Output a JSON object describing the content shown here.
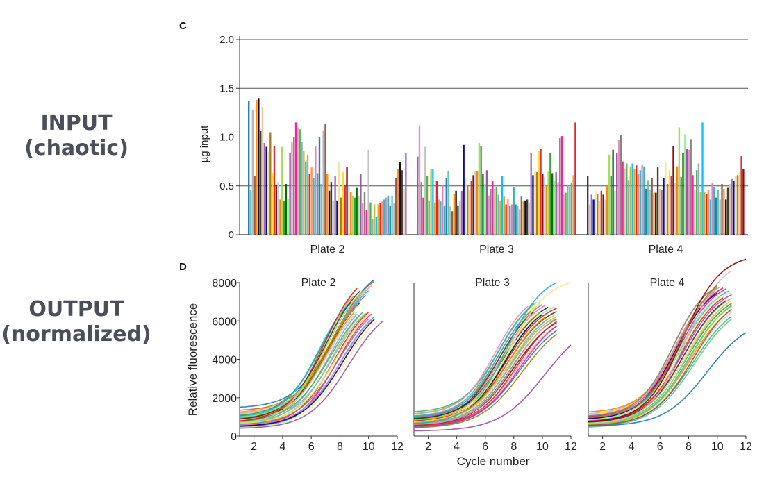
{
  "side_labels": {
    "top_line1": "INPUT",
    "top_line2": "(chaotic)",
    "bottom_line1": "OUTPUT",
    "bottom_line2": "(normalized)"
  },
  "chart_data": [
    {
      "panel": "C",
      "type": "bar",
      "ylabel": "µg input",
      "ylim": [
        0,
        2.0
      ],
      "yticks": [
        "0",
        "0.5",
        "1.0",
        "1.5",
        "2.0"
      ],
      "grid": true,
      "groups": [
        "Plate 2",
        "Plate 3",
        "Plate 4"
      ],
      "series": [
        {
          "group": "Plate 2",
          "values": [
            1.37,
            0.46,
            1.28,
            0.6,
            1.38,
            1.4,
            1.06,
            1.31,
            0.94,
            0.9,
            0.85,
            1.05,
            0.63,
            0.91,
            0.51,
            0.54,
            0.36,
            0.9,
            0.35,
            0.52,
            0.37,
            0.84,
            0.95,
            1.0,
            1.15,
            1.1,
            1.08,
            0.95,
            0.86,
            0.75,
            0.82,
            0.62,
            0.69,
            0.58,
            0.91,
            0.63,
            1.0,
            0.52,
            1.07,
            1.14,
            0.62,
            0.45,
            0.54,
            0.35,
            0.6,
            0.35,
            0.74,
            0.38,
            0.64,
            0.51,
            0.69,
            0.5,
            0.44,
            0.4,
            0.38,
            0.48,
            0.4,
            0.62,
            0.32,
            0.44,
            0.25,
            0.87,
            0.33,
            0.16,
            0.31,
            0.18,
            0.31,
            0.32,
            0.34,
            0.36,
            0.38,
            0.4,
            0.3,
            0.4,
            0.32,
            0.58,
            0.67,
            0.74,
            0.66,
            0.47,
            0.84
          ]
        },
        {
          "group": "Plate 3",
          "values": [
            0.8,
            1.12,
            0.54,
            0.38,
            0.9,
            0.6,
            0.35,
            0.67,
            0.67,
            0.33,
            0.55,
            0.36,
            0.34,
            0.5,
            0.3,
            0.58,
            0.65,
            0.29,
            0.24,
            0.42,
            0.45,
            0.3,
            0.34,
            0.45,
            0.92,
            0.58,
            0.5,
            0.46,
            0.55,
            0.61,
            0.65,
            0.65,
            0.94,
            0.91,
            0.62,
            0.52,
            0.66,
            0.4,
            0.47,
            0.55,
            0.47,
            0.49,
            0.41,
            0.35,
            0.6,
            0.39,
            0.31,
            0.37,
            0.3,
            0.31,
            0.49,
            0.31,
            0.3,
            0.26,
            0.39,
            0.34,
            0.35,
            0.36,
            0.33,
            0.84,
            0.61,
            0.65,
            0.64,
            0.86,
            0.88,
            0.62,
            0.59,
            0.51,
            0.65,
            0.84,
            0.63,
            0.55,
            0.64,
            0.54,
            0.99,
            1.01,
            0.41,
            0.43,
            0.5,
            0.49,
            0.53,
            0.61,
            1.15
          ]
        },
        {
          "group": "Plate 4",
          "values": [
            0.6,
            0.31,
            0.41,
            0.36,
            0.45,
            0.42,
            0.35,
            0.45,
            0.41,
            0.36,
            0.5,
            0.82,
            0.6,
            0.87,
            0.45,
            0.84,
            0.97,
            1.02,
            0.75,
            0.68,
            0.73,
            0.56,
            0.69,
            0.73,
            0.67,
            0.71,
            0.62,
            0.66,
            0.72,
            0.7,
            0.47,
            0.56,
            0.46,
            0.58,
            0.43,
            0.43,
            0.69,
            0.47,
            0.46,
            0.58,
            0.74,
            0.52,
            0.66,
            0.6,
            0.91,
            0.53,
            0.7,
            1.1,
            0.59,
            0.84,
            1.03,
            0.88,
            0.87,
            0.98,
            0.61,
            0.46,
            0.66,
            0.73,
            0.44,
            1.15,
            0.44,
            0.42,
            0.46,
            0.36,
            0.53,
            0.49,
            0.38,
            0.46,
            0.36,
            0.52,
            0.47,
            0.36,
            0.48,
            0.52,
            0.57,
            0.55,
            0.6,
            0.61,
            0.63,
            0.81,
            0.67
          ]
        }
      ]
    },
    {
      "panel": "D",
      "type": "line",
      "ylabel": "Relative fluorescence",
      "xlabel": "Cycle number",
      "ylim": [
        0,
        8000
      ],
      "yticks": [
        "0",
        "2000",
        "4000",
        "6000",
        "8000"
      ],
      "xlim": [
        1,
        12
      ],
      "xticks": [
        "2",
        "4",
        "6",
        "8",
        "10",
        "12"
      ],
      "subplots": [
        {
          "title": "Plate 2",
          "curve_params": "each curve: y = base + (plateau-base)/(1+exp(-(x-midpoint)/slope)); values = [base, plateau, midpoint, slope, end_cycle]",
          "curves": [
            [
              1450,
              9000,
              7.6,
              1.35,
              10.5
            ],
            [
              1300,
              8800,
              7.5,
              1.3,
              10.4
            ],
            [
              1150,
              8600,
              7.4,
              1.3,
              10.2
            ],
            [
              1000,
              8400,
              7.3,
              1.3,
              10.0
            ],
            [
              900,
              8200,
              7.2,
              1.3,
              9.8
            ],
            [
              800,
              8000,
              7.1,
              1.3,
              9.5
            ],
            [
              750,
              7900,
              7.0,
              1.3,
              9.3
            ],
            [
              700,
              7800,
              6.9,
              1.3,
              9.1
            ],
            [
              650,
              7700,
              7.0,
              1.3,
              9.0
            ],
            [
              600,
              7600,
              7.2,
              1.3,
              9.2
            ],
            [
              550,
              7500,
              7.4,
              1.3,
              9.5
            ],
            [
              500,
              7400,
              7.6,
              1.3,
              10.0
            ],
            [
              450,
              7300,
              7.8,
              1.3,
              10.2
            ],
            [
              420,
              7200,
              8.0,
              1.35,
              10.4
            ],
            [
              400,
              7100,
              8.3,
              1.4,
              10.6
            ],
            [
              380,
              7000,
              8.6,
              1.4,
              11.0
            ],
            [
              1200,
              8300,
              6.8,
              1.2,
              9.0
            ],
            [
              1100,
              8100,
              6.7,
              1.2,
              8.9
            ],
            [
              1000,
              8000,
              6.6,
              1.25,
              8.8
            ],
            [
              950,
              7900,
              6.5,
              1.2,
              8.6
            ],
            [
              850,
              7700,
              6.9,
              1.25,
              9.1
            ],
            [
              780,
              7600,
              7.1,
              1.3,
              9.3
            ],
            [
              720,
              7500,
              7.3,
              1.35,
              9.6
            ],
            [
              680,
              7450,
              7.5,
              1.35,
              9.8
            ],
            [
              620,
              7400,
              7.7,
              1.35,
              10.0
            ],
            [
              560,
              7350,
              7.9,
              1.4,
              10.1
            ],
            [
              520,
              7300,
              8.1,
              1.4,
              10.3
            ],
            [
              480,
              7250,
              8.2,
              1.4,
              10.5
            ],
            [
              600,
              9000,
              7.0,
              1.3,
              9.0
            ],
            [
              700,
              8900,
              6.9,
              1.3,
              9.2
            ],
            [
              800,
              8700,
              7.0,
              1.35,
              9.4
            ],
            [
              900,
              8600,
              7.1,
              1.35,
              9.6
            ]
          ]
        },
        {
          "title": "Plate 3",
          "curve_params": "each curve: y = base + (plateau-base)/(1+exp(-(x-midpoint)/slope)); values = [base, plateau, midpoint, slope, end_cycle]",
          "curves": [
            [
              1200,
              7800,
              7.0,
              1.3,
              9.5
            ],
            [
              1100,
              7700,
              6.9,
              1.3,
              9.6
            ],
            [
              1000,
              7600,
              7.0,
              1.3,
              9.8
            ],
            [
              950,
              7500,
              7.1,
              1.3,
              10.0
            ],
            [
              900,
              7400,
              7.2,
              1.3,
              10.2
            ],
            [
              850,
              7300,
              7.3,
              1.35,
              10.5
            ],
            [
              800,
              7200,
              7.4,
              1.35,
              10.8
            ],
            [
              750,
              7100,
              7.5,
              1.35,
              11.0
            ],
            [
              700,
              7000,
              7.6,
              1.4,
              11.0
            ],
            [
              650,
              6900,
              7.7,
              1.4,
              11.0
            ],
            [
              600,
              6800,
              7.8,
              1.4,
              11.0
            ],
            [
              550,
              6700,
              7.9,
              1.4,
              11.0
            ],
            [
              500,
              6600,
              8.0,
              1.45,
              11.0
            ],
            [
              450,
              6500,
              8.2,
              1.45,
              11.0
            ],
            [
              420,
              6400,
              8.4,
              1.5,
              11.0
            ],
            [
              400,
              6300,
              8.6,
              1.5,
              11.0
            ],
            [
              1100,
              7600,
              6.7,
              1.2,
              9.0
            ],
            [
              1000,
              7500,
              6.8,
              1.2,
              9.2
            ],
            [
              900,
              7400,
              6.9,
              1.25,
              9.3
            ],
            [
              850,
              7300,
              7.0,
              1.25,
              9.5
            ],
            [
              780,
              7200,
              7.2,
              1.3,
              9.8
            ],
            [
              720,
              7100,
              7.4,
              1.3,
              10.0
            ],
            [
              680,
              7000,
              7.6,
              1.35,
              10.2
            ],
            [
              620,
              6900,
              7.8,
              1.35,
              10.5
            ],
            [
              560,
              6800,
              8.0,
              1.4,
              10.8
            ],
            [
              520,
              6700,
              8.2,
              1.4,
              11.0
            ],
            [
              480,
              6600,
              8.4,
              1.45,
              11.0
            ],
            [
              600,
              8500,
              7.5,
              1.3,
              11.0
            ],
            [
              700,
              8300,
              7.7,
              1.35,
              12.0
            ],
            [
              250,
              6200,
              10.2,
              1.6,
              12.0
            ]
          ]
        },
        {
          "title": "Plate 4",
          "curve_params": "each curve: y = base + (plateau-base)/(1+exp(-(x-midpoint)/slope)); values = [base, plateau, midpoint, slope, end_cycle]",
          "curves": [
            [
              1200,
              8600,
              7.3,
              1.3,
              10.0
            ],
            [
              1100,
              8500,
              7.2,
              1.3,
              10.0
            ],
            [
              1000,
              8400,
              7.1,
              1.3,
              10.2
            ],
            [
              950,
              8300,
              7.2,
              1.3,
              10.4
            ],
            [
              900,
              8200,
              7.3,
              1.3,
              10.6
            ],
            [
              850,
              8100,
              7.4,
              1.35,
              10.8
            ],
            [
              800,
              8000,
              7.5,
              1.35,
              11.0
            ],
            [
              750,
              7900,
              7.6,
              1.35,
              11.0
            ],
            [
              700,
              7800,
              7.7,
              1.4,
              11.0
            ],
            [
              650,
              7700,
              7.8,
              1.4,
              11.0
            ],
            [
              600,
              7600,
              7.9,
              1.4,
              11.0
            ],
            [
              560,
              7500,
              8.0,
              1.4,
              11.0
            ],
            [
              520,
              7400,
              8.1,
              1.45,
              11.0
            ],
            [
              480,
              7300,
              8.2,
              1.45,
              11.0
            ],
            [
              450,
              7200,
              8.3,
              1.5,
              11.0
            ],
            [
              420,
              7100,
              8.4,
              1.5,
              11.0
            ],
            [
              1100,
              8400,
              7.0,
              1.2,
              9.5
            ],
            [
              1000,
              8300,
              6.9,
              1.2,
              9.6
            ],
            [
              900,
              8200,
              7.0,
              1.25,
              9.8
            ],
            [
              850,
              8100,
              7.1,
              1.25,
              10.0
            ],
            [
              780,
              8000,
              7.3,
              1.3,
              10.2
            ],
            [
              720,
              7900,
              7.5,
              1.3,
              10.4
            ],
            [
              680,
              7800,
              7.7,
              1.35,
              10.6
            ],
            [
              620,
              7700,
              7.9,
              1.35,
              10.8
            ],
            [
              560,
              7600,
              8.1,
              1.4,
              11.0
            ],
            [
              520,
              7500,
              8.3,
              1.4,
              11.0
            ],
            [
              700,
              9500,
              7.6,
              1.3,
              12.0
            ],
            [
              600,
              9300,
              7.8,
              1.3,
              11.0
            ],
            [
              500,
              6200,
              9.3,
              1.5,
              12.0
            ],
            [
              900,
              8800,
              7.4,
              1.3,
              10.0
            ]
          ]
        }
      ]
    }
  ],
  "colors": {
    "palette": [
      "#1f77b4",
      "#e41a1c",
      "#4daf4a",
      "#984ea3",
      "#ff7f00",
      "#a6761d",
      "#333333",
      "#66c2a5",
      "#fc8d62",
      "#8da0cb",
      "#e78ac3",
      "#a6d854",
      "#ffd92f",
      "#e5c494",
      "#b3b3b3",
      "#17becf",
      "#bcbd22",
      "#7f7f7f",
      "#2ca02c",
      "#d62728",
      "#9467bd",
      "#8c564b",
      "#e377c2",
      "#00bfff",
      "#ff1493",
      "#006400",
      "#8b0000",
      "#00008b",
      "#ff8c00",
      "#20b2aa",
      "#daa520",
      "#c0c0c0",
      "#90ee90",
      "#add8e6",
      "#f0e68c",
      "#000000"
    ],
    "axis": "#333333",
    "grid": "#555555",
    "side_text": "#4a4f5a"
  }
}
